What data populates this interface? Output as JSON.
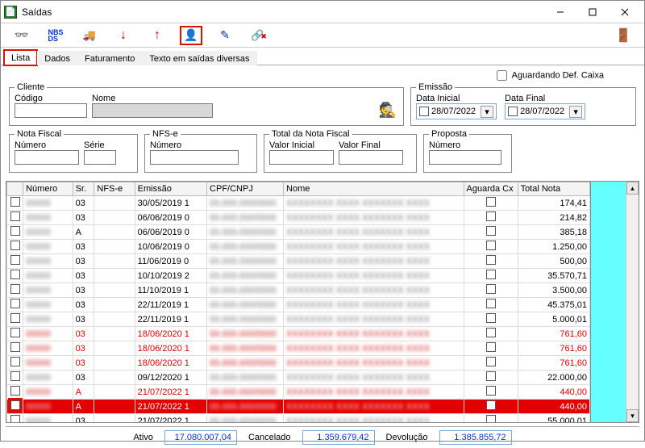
{
  "window": {
    "title": "Saídas"
  },
  "tabs": {
    "t0": "Lista",
    "t1": "Dados",
    "t2": "Faturamento",
    "t3": "Texto em saídas diversas"
  },
  "awaiting_label": "Aguardando Def. Caixa",
  "groups": {
    "cliente": {
      "legend": "Cliente",
      "codigo_label": "Código",
      "nome_label": "Nome",
      "codigo": "",
      "nome": ""
    },
    "emissao": {
      "legend": "Emissão",
      "ini_label": "Data Inicial",
      "fin_label": "Data Final",
      "ini": "28/07/2022",
      "fin": "28/07/2022"
    },
    "nf": {
      "legend": "Nota Fiscal",
      "numero_label": "Número",
      "serie_label": "Série",
      "numero": "",
      "serie": ""
    },
    "nfse": {
      "legend": "NFS-e",
      "numero_label": "Número",
      "numero": ""
    },
    "total": {
      "legend": "Total da Nota Fiscal",
      "vi_label": "Valor Inicial",
      "vf_label": "Valor Final",
      "vi": "",
      "vf": ""
    },
    "proposta": {
      "legend": "Proposta",
      "numero_label": "Número",
      "numero": ""
    }
  },
  "grid": {
    "headers": {
      "numero": "Número",
      "sr": "Sr.",
      "nfse": "NFS-e",
      "emissao": "Emissão",
      "cpf": "CPF/CNPJ",
      "nome": "Nome",
      "aguarda": "Aguarda Cx",
      "total": "Total Nota"
    },
    "rows": [
      {
        "sr": "03",
        "emissao": "30/05/2019 1",
        "total": "174,41",
        "style": ""
      },
      {
        "sr": "03",
        "emissao": "06/06/2019 0",
        "total": "214,82",
        "style": ""
      },
      {
        "sr": "A",
        "emissao": "06/06/2019 0",
        "total": "385,18",
        "style": ""
      },
      {
        "sr": "03",
        "emissao": "10/06/2019 0",
        "total": "1.250,00",
        "style": ""
      },
      {
        "sr": "03",
        "emissao": "11/06/2019 0",
        "total": "500,00",
        "style": ""
      },
      {
        "sr": "03",
        "emissao": "10/10/2019 2",
        "total": "35.570,71",
        "style": ""
      },
      {
        "sr": "03",
        "emissao": "11/10/2019 1",
        "total": "3.500,00",
        "style": ""
      },
      {
        "sr": "03",
        "emissao": "22/11/2019 1",
        "total": "45.375,01",
        "style": ""
      },
      {
        "sr": "03",
        "emissao": "22/11/2019 1",
        "total": "5.000,01",
        "style": ""
      },
      {
        "sr": "03",
        "emissao": "18/06/2020 1",
        "total": "761,60",
        "style": "redtext"
      },
      {
        "sr": "03",
        "emissao": "18/06/2020 1",
        "total": "761,60",
        "style": "redtext"
      },
      {
        "sr": "03",
        "emissao": "18/06/2020 1",
        "total": "761,60",
        "style": "redtext"
      },
      {
        "sr": "03",
        "emissao": "09/12/2020 1",
        "total": "22.000,00",
        "style": ""
      },
      {
        "sr": "A",
        "emissao": "21/07/2022 1",
        "total": "440,00",
        "style": "redtext"
      },
      {
        "sr": "A",
        "emissao": "21/07/2022 1",
        "total": "440,00",
        "style": "redbg highlight"
      },
      {
        "sr": "03",
        "emissao": "21/07/2022 1",
        "total": "55.000,01",
        "style": ""
      }
    ]
  },
  "footer": {
    "ativo_label": "Ativo",
    "ativo_val": "17.080.007,04",
    "cancel_label": "Cancelado",
    "cancel_val": "1.359.679,42",
    "devol_label": "Devolução",
    "devol_val": "1.385.855,72"
  }
}
